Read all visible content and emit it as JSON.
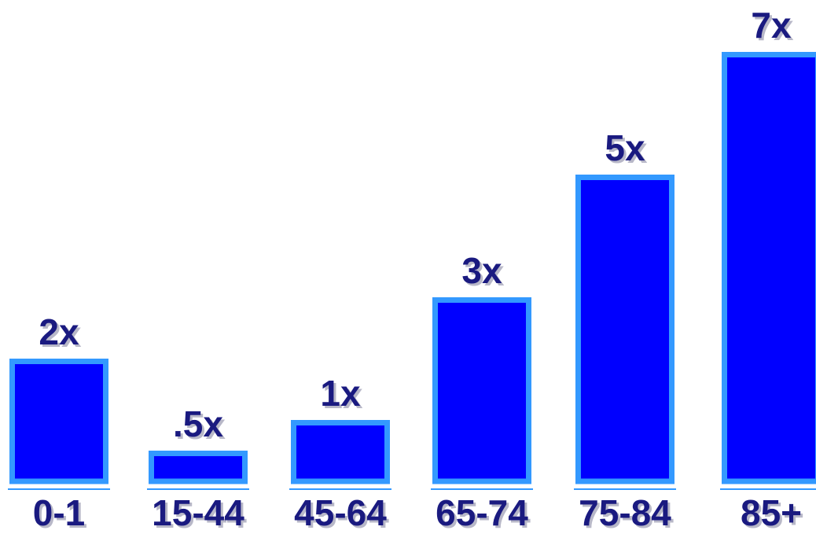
{
  "chart_data": {
    "type": "bar",
    "categories": [
      "0-1",
      "15-44",
      "45-64",
      "65-74",
      "75-84",
      "85+"
    ],
    "values": [
      2,
      0.5,
      1,
      3,
      5,
      7
    ],
    "data_labels": [
      "2x",
      ".5x",
      "1x",
      "3x",
      "5x",
      "7x"
    ],
    "title": "",
    "xlabel": "",
    "ylabel": "",
    "ylim": [
      0,
      7
    ],
    "grid": false,
    "colors": {
      "bar_fill": "#0000ff",
      "bar_border": "#3399ff",
      "label_text": "#1a1a80",
      "baseline": "#3399ff"
    }
  }
}
